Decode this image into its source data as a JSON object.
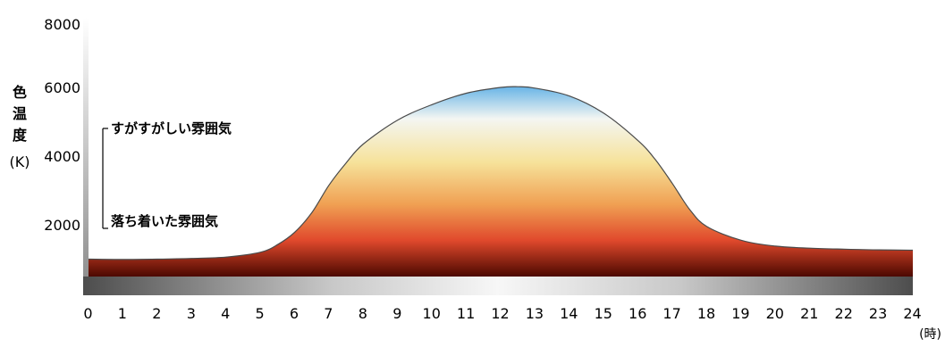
{
  "chart_data": {
    "type": "area",
    "ylabel_chars": [
      "色",
      "温",
      "度",
      "(K)"
    ],
    "x_unit": "(時)",
    "xlim": [
      0,
      24
    ],
    "ylim": [
      0,
      8000
    ],
    "x_ticks": [
      0,
      1,
      2,
      3,
      4,
      5,
      6,
      7,
      8,
      9,
      10,
      11,
      12,
      13,
      14,
      15,
      16,
      17,
      18,
      19,
      20,
      21,
      22,
      23,
      24
    ],
    "y_ticks": [
      2000,
      4000,
      6000,
      8000
    ],
    "x": [
      0,
      1,
      2,
      3,
      4,
      5,
      5.5,
      6,
      6.5,
      7,
      7.5,
      8,
      9,
      10,
      11,
      12,
      12.5,
      13,
      14,
      15,
      16,
      16.5,
      17,
      17.5,
      18,
      19,
      20,
      21,
      22,
      23,
      24
    ],
    "values": [
      1000,
      990,
      1000,
      1020,
      1060,
      1200,
      1420,
      1780,
      2350,
      3150,
      3800,
      4350,
      5050,
      5500,
      5830,
      6000,
      6020,
      5980,
      5750,
      5250,
      4450,
      3900,
      3200,
      2450,
      1950,
      1550,
      1380,
      1320,
      1290,
      1270,
      1260
    ],
    "colors": {
      "blue": "#68b4e6",
      "white": "#f4f6f2",
      "yellow": "#f6e29a",
      "orange": "#f0a053",
      "red": "#e0492c",
      "dark": "#4c0800"
    },
    "annotations": [
      {
        "text": "すがすがしい雰囲気",
        "y": 4650
      },
      {
        "text": "落ち着いた雰囲気",
        "y": 2000
      }
    ]
  }
}
